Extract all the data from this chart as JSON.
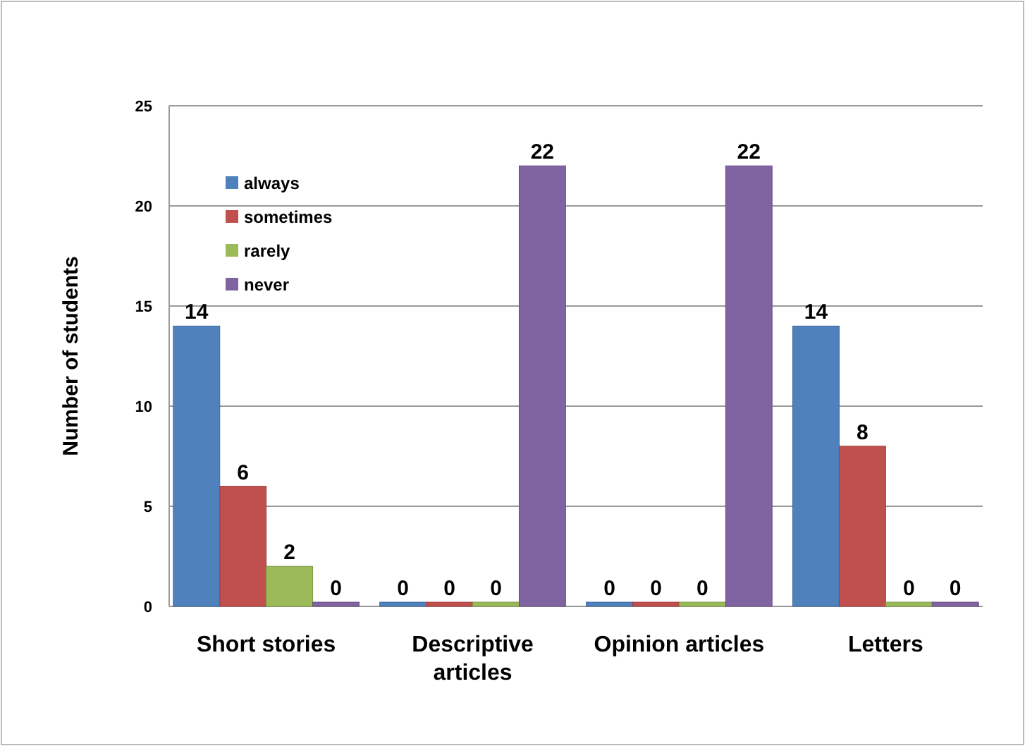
{
  "chart_data": {
    "type": "bar",
    "ylabel": "Number of students",
    "categories": [
      "Short stories",
      "Descriptive articles",
      "Opinion articles",
      "Letters"
    ],
    "series": [
      {
        "name": "always",
        "color": "#4f81bd",
        "values": [
          14,
          0,
          0,
          14
        ]
      },
      {
        "name": "sometimes",
        "color": "#c0504d",
        "values": [
          6,
          0,
          0,
          8
        ]
      },
      {
        "name": "rarely",
        "color": "#9bbb59",
        "values": [
          2,
          0,
          0,
          0
        ]
      },
      {
        "name": "never",
        "color": "#8064a2",
        "values": [
          0,
          22,
          22,
          0
        ]
      }
    ],
    "ylim": [
      0,
      25
    ],
    "yticks": [
      0,
      5,
      10,
      15,
      20,
      25
    ],
    "grid": "y",
    "legend": "top left",
    "data_labels": true
  }
}
